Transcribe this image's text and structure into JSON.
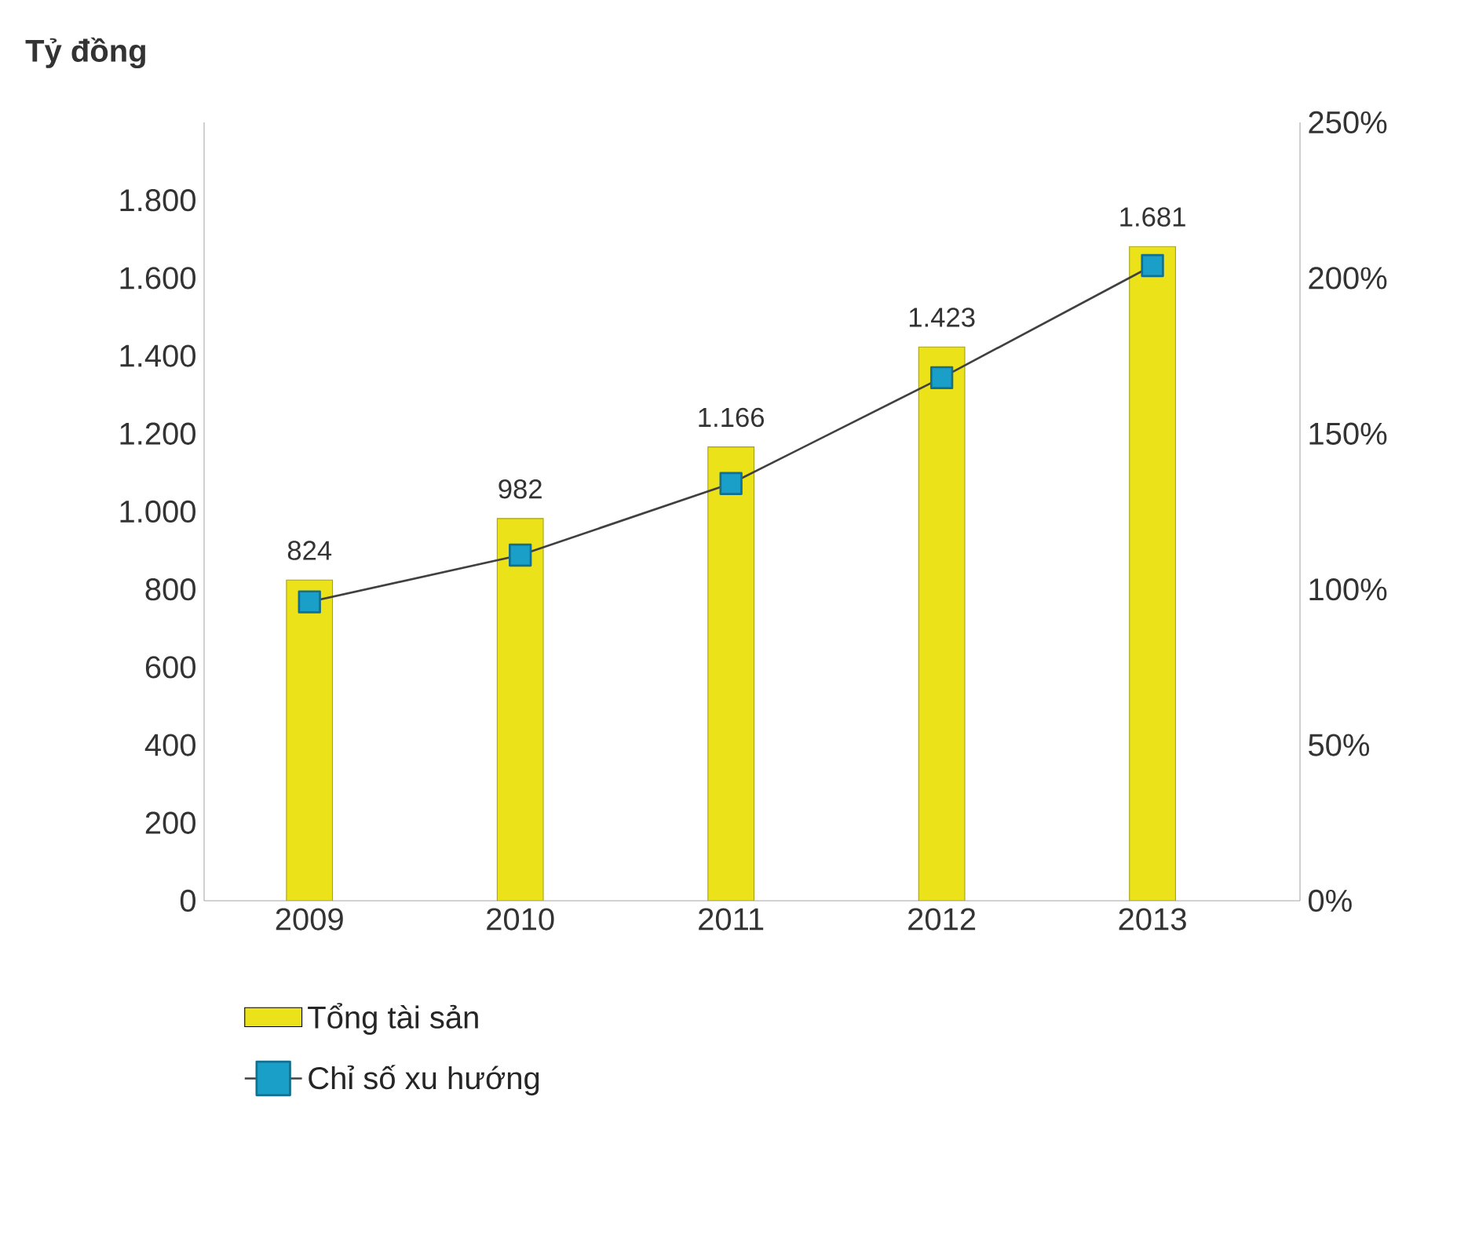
{
  "chart_data": {
    "type": "bar",
    "ylabel": "Tỷ đồng",
    "categories": [
      "2009",
      "2010",
      "2011",
      "2012",
      "2013"
    ],
    "series": [
      {
        "name": "Tổng tài sản",
        "color": "#ece21a",
        "values": [
          824,
          982,
          1166,
          1423,
          1681
        ],
        "value_labels": [
          "824",
          "982",
          "1.166",
          "1.423",
          "1.681"
        ]
      },
      {
        "name": "Chỉ số xu hướng",
        "type": "line",
        "axis": "y2",
        "color": "#1a9fc9",
        "values": [
          96,
          111,
          134,
          168,
          204
        ],
        "marker": "square",
        "line_style": "solid"
      }
    ],
    "ylim": [
      0,
      2000
    ],
    "yticks": [
      0,
      200,
      400,
      600,
      800,
      {
        "value": 1000,
        "label": "1.000"
      },
      {
        "value": 1200,
        "label": "1.200"
      },
      {
        "value": 1400,
        "label": "1.400"
      },
      {
        "value": 1600,
        "label": "1.600"
      },
      {
        "value": 1800,
        "label": "1.800"
      }
    ],
    "y2lim": [
      0,
      250
    ],
    "y2ticks": [
      {
        "value": 0,
        "label": "0%"
      },
      {
        "value": 50,
        "label": "50%"
      },
      {
        "value": 100,
        "label": "100%"
      },
      {
        "value": 150,
        "label": "150%"
      },
      {
        "value": 200,
        "label": "200%"
      },
      {
        "value": 250,
        "label": "250%"
      }
    ],
    "grid": false,
    "legend": "bottom left"
  }
}
